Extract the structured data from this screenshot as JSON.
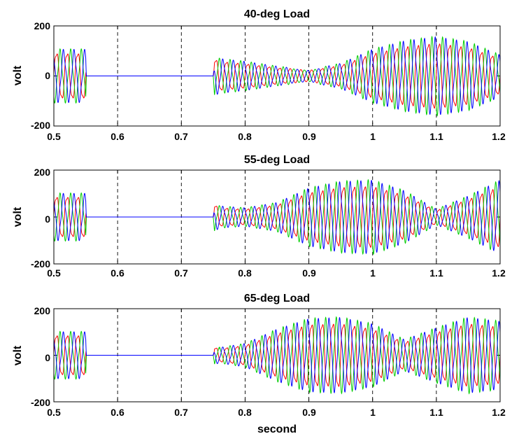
{
  "figure": {
    "xlabel": "second"
  },
  "chart_data": [
    {
      "type": "line",
      "title": "40-deg Load",
      "ylabel": "volt",
      "xlabel": "",
      "xlim": [
        0.5,
        1.2
      ],
      "ylim": [
        -200,
        200
      ],
      "xticks": [
        "0.5",
        "0.6",
        "0.7",
        "0.8",
        "0.9",
        "1",
        "1.1",
        "1.2"
      ],
      "yticks": [
        "200",
        "0",
        "-200"
      ],
      "grid": "vertical dashed",
      "frequency_hz": 60,
      "series_colors": [
        "#ff0000",
        "#00cc00",
        "#0000ff"
      ],
      "envelope": {
        "t": [
          0.5,
          0.55,
          0.551,
          0.75,
          0.752,
          0.76,
          0.8,
          0.85,
          0.9,
          0.95,
          1.0,
          1.05,
          1.1,
          1.15,
          1.2
        ],
        "amp": [
          95,
          95,
          0,
          0,
          70,
          62,
          52,
          35,
          22,
          45,
          95,
          125,
          140,
          122,
          75
        ]
      }
    },
    {
      "type": "line",
      "title": "55-deg Load",
      "ylabel": "volt",
      "xlabel": "",
      "xlim": [
        0.5,
        1.2
      ],
      "ylim": [
        -200,
        200
      ],
      "xticks": [
        "0.5",
        "0.6",
        "0.7",
        "0.8",
        "0.9",
        "1",
        "1.1",
        "1.2"
      ],
      "yticks": [
        "200",
        "0",
        "-200"
      ],
      "grid": "vertical dashed",
      "frequency_hz": 60,
      "series_colors": [
        "#ff0000",
        "#00cc00",
        "#0000ff"
      ],
      "envelope": {
        "t": [
          0.5,
          0.55,
          0.551,
          0.75,
          0.752,
          0.76,
          0.8,
          0.85,
          0.9,
          0.95,
          1.0,
          1.05,
          1.1,
          1.15,
          1.2
        ],
        "amp": [
          90,
          90,
          0,
          0,
          55,
          42,
          35,
          55,
          110,
          135,
          140,
          100,
          30,
          80,
          140
        ]
      }
    },
    {
      "type": "line",
      "title": "65-deg Load",
      "ylabel": "volt",
      "xlabel": "",
      "xlim": [
        0.5,
        1.2
      ],
      "ylim": [
        -200,
        200
      ],
      "xticks": [
        "0.5",
        "0.6",
        "0.7",
        "0.8",
        "0.9",
        "1",
        "1.1",
        "1.2"
      ],
      "yticks": [
        "200",
        "0",
        "-200"
      ],
      "grid": "vertical dashed",
      "frequency_hz": 60,
      "series_colors": [
        "#ff0000",
        "#00cc00",
        "#0000ff"
      ],
      "envelope": {
        "t": [
          0.5,
          0.55,
          0.551,
          0.75,
          0.752,
          0.76,
          0.8,
          0.85,
          0.9,
          0.95,
          1.0,
          1.05,
          1.1,
          1.15,
          1.2
        ],
        "amp": [
          90,
          90,
          0,
          0,
          35,
          30,
          45,
          100,
          140,
          145,
          120,
          60,
          105,
          145,
          130
        ]
      }
    }
  ]
}
